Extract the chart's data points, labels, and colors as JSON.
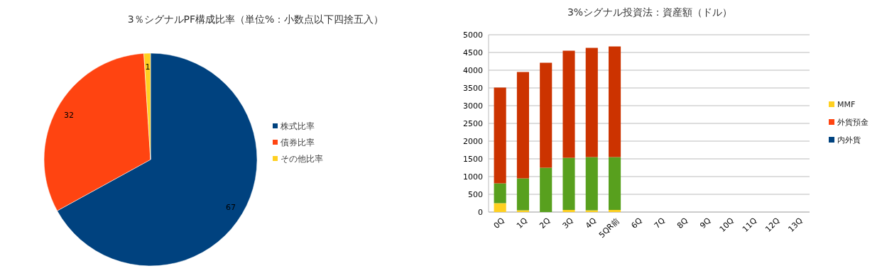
{
  "chart_data": [
    {
      "type": "pie",
      "title": "3％シグナルPF構成比率（単位%：小数点以下四捨五入）",
      "categories": [
        "株式比率",
        "債券比率",
        "その他比率"
      ],
      "values": [
        67,
        32,
        1
      ],
      "colors": [
        "#00427f",
        "#ff4411",
        "#ffd021"
      ],
      "data_labels": true,
      "legend": "right"
    },
    {
      "type": "bar",
      "title": "3%シグナル投資法：資産額（ドル）",
      "categories": [
        "0Q",
        "1Q",
        "2Q",
        "3Q",
        "4Q",
        "5QR前",
        "6Q",
        "7Q",
        "8Q",
        "9Q",
        "10Q",
        "11Q",
        "12Q",
        "13Q"
      ],
      "stacked": true,
      "ylim": [
        0,
        5000
      ],
      "yticks": [
        0,
        500,
        1000,
        1500,
        2000,
        2500,
        3000,
        3500,
        4000,
        4500,
        5000
      ],
      "grid": "y",
      "legend": "right",
      "series": [
        {
          "name": "内外貨",
          "color": "#00427f",
          "values": [
            null,
            null,
            null,
            null,
            null,
            null,
            null,
            null,
            null,
            null,
            null,
            null,
            null,
            null
          ]
        },
        {
          "name": "外貨預金",
          "color": "#ff4411",
          "values": [
            null,
            null,
            null,
            null,
            null,
            null,
            null,
            null,
            null,
            null,
            null,
            null,
            null,
            null
          ]
        },
        {
          "name": "MMF",
          "color": "#ffd021",
          "values": [
            250,
            50,
            0,
            60,
            50,
            60,
            null,
            null,
            null,
            null,
            null,
            null,
            null,
            null
          ]
        },
        {
          "color": "#58a01e",
          "values": [
            560,
            900,
            1250,
            1470,
            1500,
            1490,
            null,
            null,
            null,
            null,
            null,
            null,
            null,
            null
          ]
        },
        {
          "color": "#cc3300",
          "values": [
            2700,
            3000,
            2960,
            3020,
            3080,
            3120,
            null,
            null,
            null,
            null,
            null,
            null,
            null,
            null
          ]
        }
      ]
    }
  ]
}
